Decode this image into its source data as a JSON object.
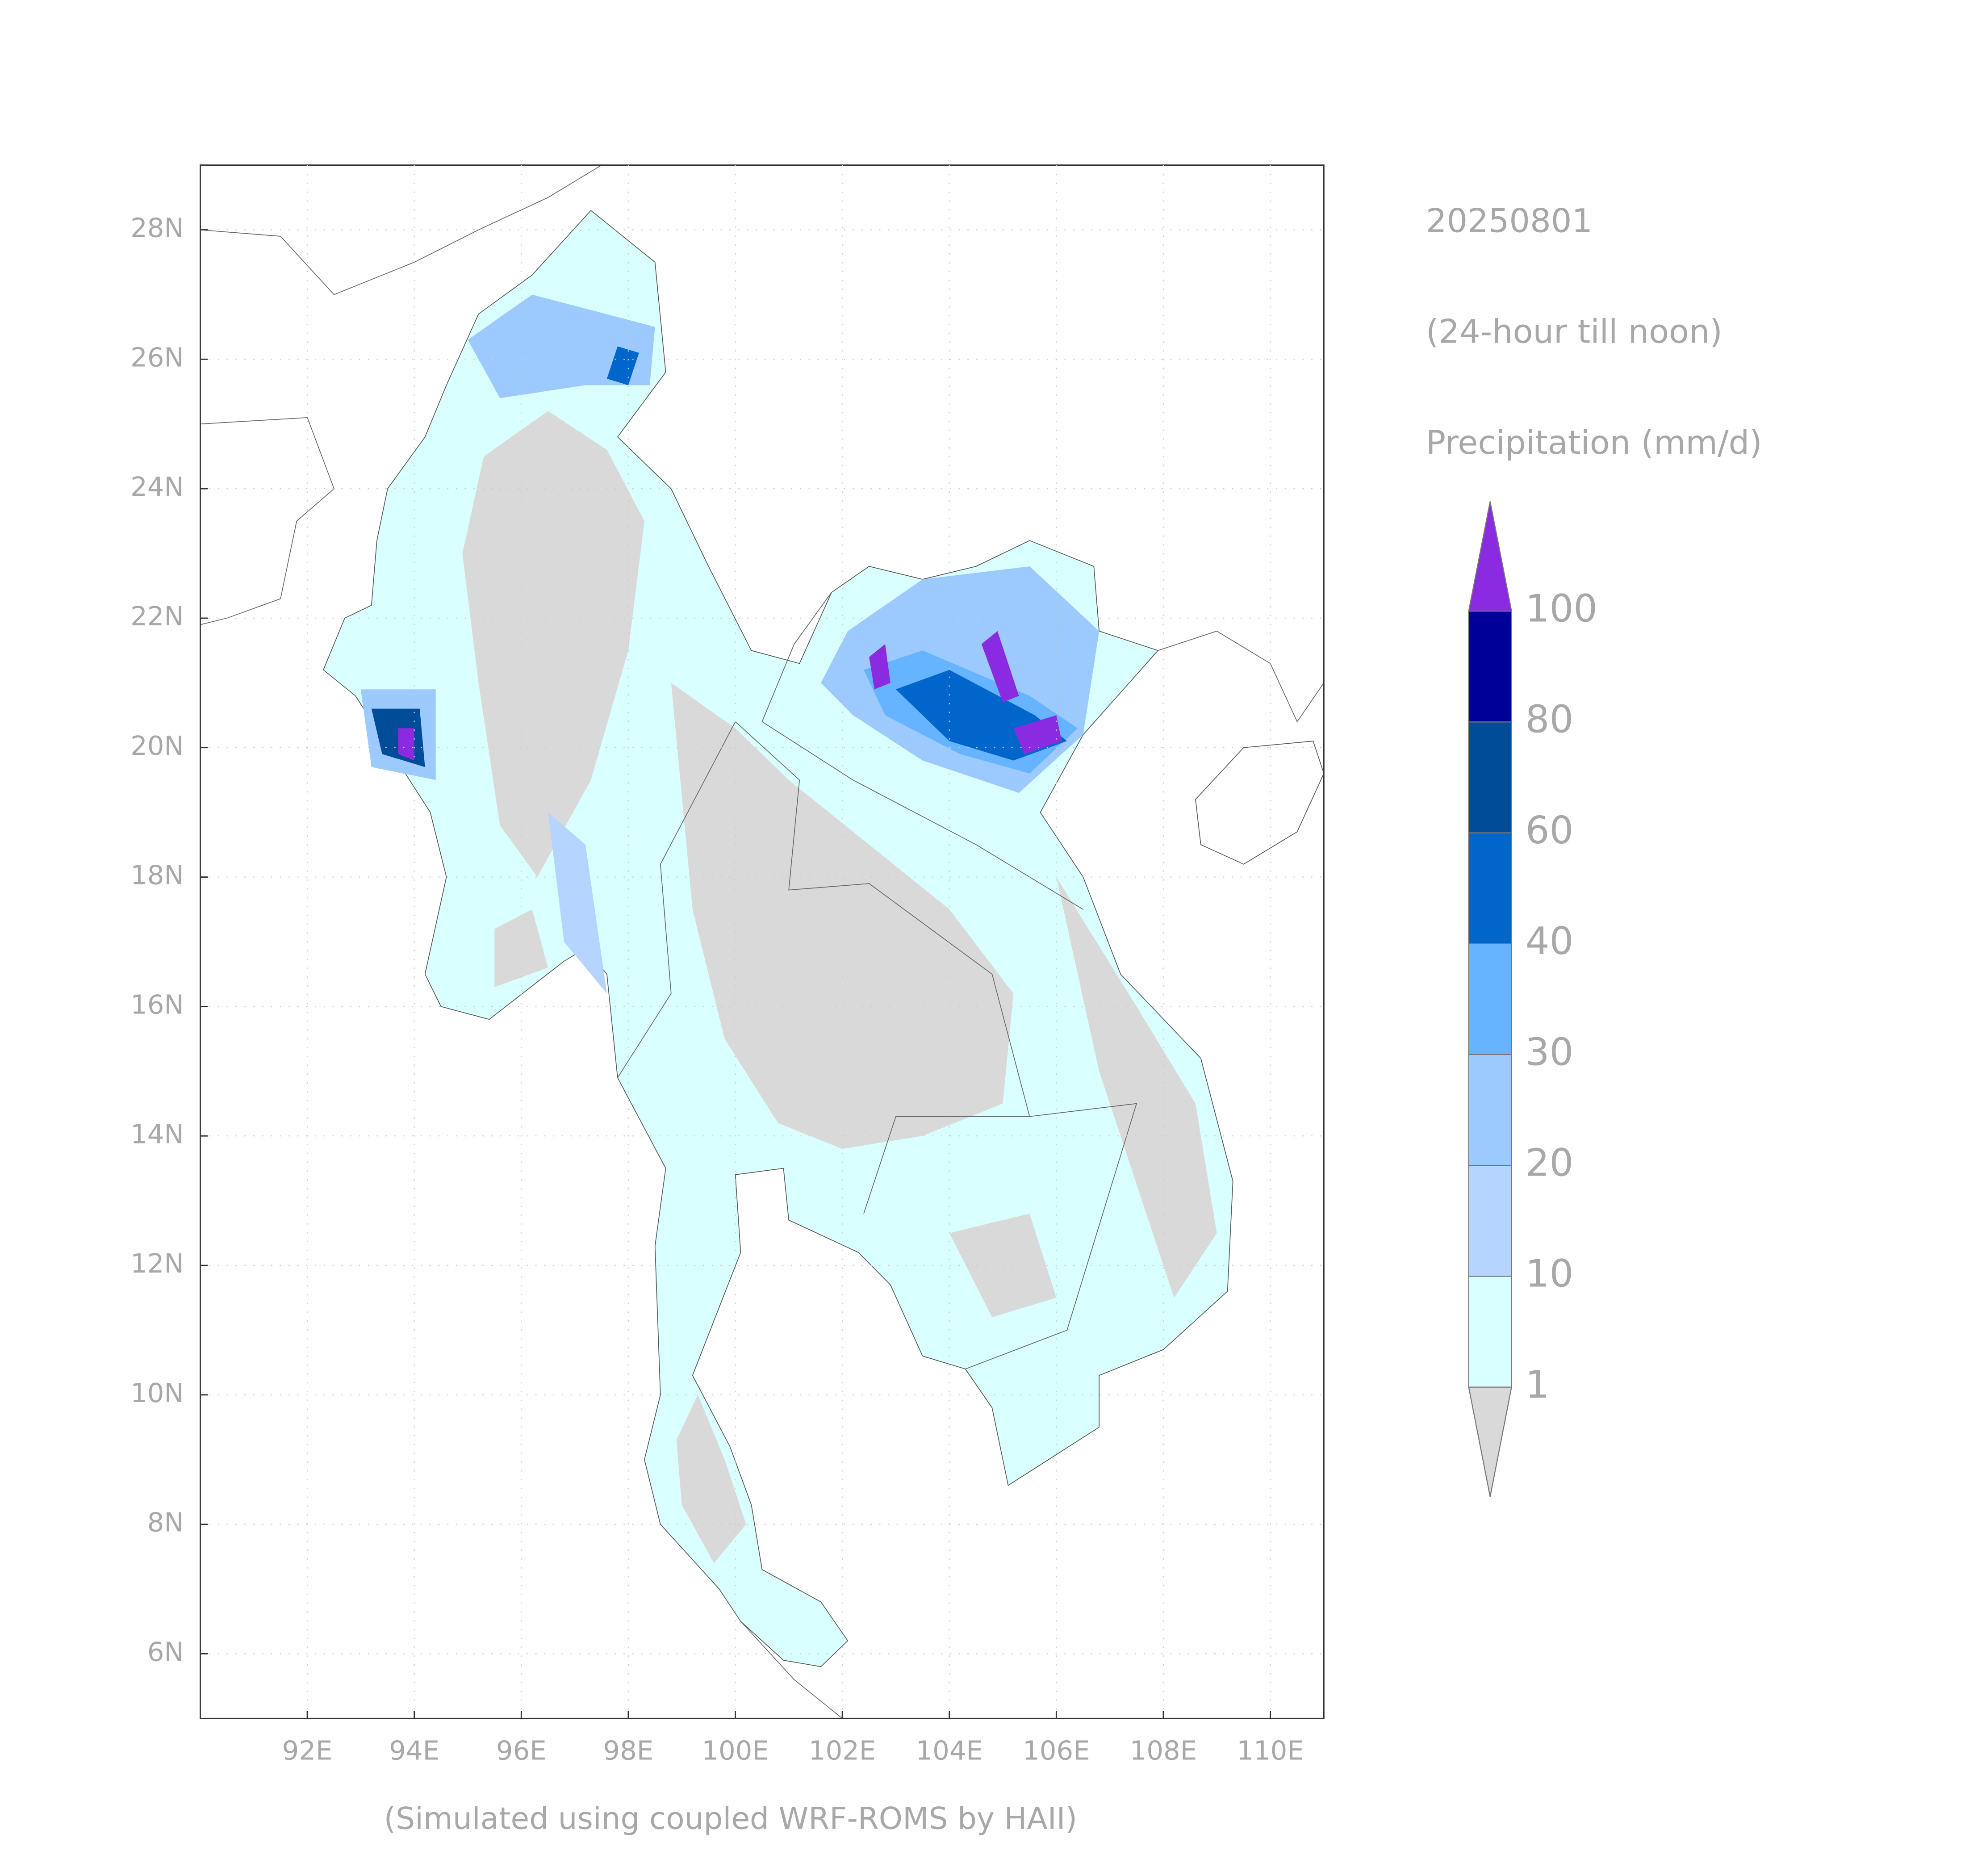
{
  "chart_data": {
    "type": "map",
    "title": "20250801",
    "subtitle": "(24-hour till noon)",
    "colorbar_label": "Precipitation (mm/d)",
    "caption": "(Simulated using coupled WRF-ROMS by HAII)",
    "xlim": [
      90,
      111
    ],
    "ylim": [
      5,
      29
    ],
    "xticks": [
      {
        "value": 92,
        "label": "92E"
      },
      {
        "value": 94,
        "label": "94E"
      },
      {
        "value": 96,
        "label": "96E"
      },
      {
        "value": 98,
        "label": "98E"
      },
      {
        "value": 100,
        "label": "100E"
      },
      {
        "value": 102,
        "label": "102E"
      },
      {
        "value": 104,
        "label": "104E"
      },
      {
        "value": 106,
        "label": "106E"
      },
      {
        "value": 108,
        "label": "108E"
      },
      {
        "value": 110,
        "label": "110E"
      }
    ],
    "yticks": [
      {
        "value": 6,
        "label": "6N"
      },
      {
        "value": 8,
        "label": "8N"
      },
      {
        "value": 10,
        "label": "10N"
      },
      {
        "value": 12,
        "label": "12N"
      },
      {
        "value": 14,
        "label": "14N"
      },
      {
        "value": 16,
        "label": "16N"
      },
      {
        "value": 18,
        "label": "18N"
      },
      {
        "value": 20,
        "label": "20N"
      },
      {
        "value": 22,
        "label": "22N"
      },
      {
        "value": 24,
        "label": "24N"
      },
      {
        "value": 26,
        "label": "26N"
      },
      {
        "value": 28,
        "label": "28N"
      }
    ],
    "grid": true,
    "levels": [
      1,
      10,
      20,
      30,
      40,
      60,
      80,
      100
    ],
    "colors": [
      "#d9d9d9",
      "#d9ffff",
      "#b5d4ff",
      "#9ccaff",
      "#66b3ff",
      "#0066cc",
      "#004c99",
      "#000099",
      "#8a2be2"
    ]
  }
}
